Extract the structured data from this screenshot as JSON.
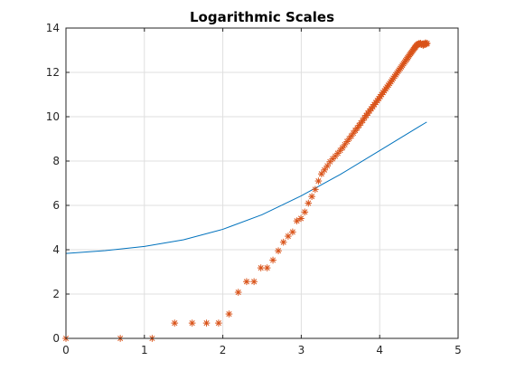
{
  "chart_data": {
    "type": "line",
    "title": "Logarithmic Scales",
    "xlabel": "",
    "ylabel": "",
    "xlim": [
      0,
      5
    ],
    "ylim": [
      0,
      14
    ],
    "x_ticks": [
      "0",
      "1",
      "2",
      "3",
      "4",
      "5"
    ],
    "y_ticks": [
      "0",
      "2",
      "4",
      "6",
      "8",
      "10",
      "12",
      "14"
    ],
    "grid": true,
    "legend": "none",
    "colors": {
      "line": "#0072BD",
      "markers": "#D95319",
      "grid": "#DFDFDF",
      "axes": "#262626"
    },
    "series": [
      {
        "style": "line",
        "curve": "y = x + ln(1 + 45·e^(-x))",
        "x": [
          0,
          0.5,
          1,
          1.5,
          2,
          2.5,
          3,
          3.5,
          4,
          4.5,
          4.6
        ],
        "y": [
          3.83,
          3.96,
          4.15,
          4.45,
          4.92,
          5.58,
          6.43,
          7.4,
          8.47,
          9.55,
          9.76
        ]
      },
      {
        "style": "markers",
        "marker": "asterisk",
        "x": [
          0,
          0.693,
          1.099,
          1.386,
          1.609,
          1.792,
          1.946,
          2.079,
          2.197,
          2.303,
          2.398,
          2.485,
          2.565,
          2.639,
          2.708,
          2.773,
          2.833,
          2.89,
          2.944,
          2.996,
          3.045,
          3.091,
          3.135,
          3.178,
          3.219,
          3.258,
          3.296,
          3.332,
          3.367,
          3.401,
          3.434,
          3.466,
          3.497,
          3.526,
          3.555,
          3.584,
          3.611,
          3.638,
          3.664,
          3.689,
          3.714,
          3.738,
          3.761,
          3.784,
          3.807,
          3.829,
          3.85,
          3.871,
          3.892,
          3.912,
          3.932,
          3.951,
          3.97,
          3.989,
          4.007,
          4.025,
          4.043,
          4.06,
          4.078,
          4.094,
          4.111,
          4.127,
          4.143,
          4.159,
          4.174,
          4.19,
          4.205,
          4.22,
          4.234,
          4.248,
          4.263,
          4.277,
          4.29,
          4.304,
          4.317,
          4.331,
          4.344,
          4.357,
          4.369,
          4.382,
          4.394,
          4.407,
          4.419,
          4.431,
          4.443,
          4.454,
          4.466,
          4.477,
          4.489,
          4.5,
          4.511,
          4.522,
          4.533,
          4.543,
          4.554,
          4.564,
          4.575,
          4.585,
          4.595,
          4.605
        ],
        "y": [
          0,
          0,
          0,
          0.69,
          0.69,
          0.69,
          0.69,
          1.1,
          2.08,
          2.56,
          2.56,
          3.18,
          3.18,
          3.53,
          3.95,
          4.34,
          4.61,
          4.8,
          5.3,
          5.41,
          5.7,
          6.1,
          6.4,
          6.72,
          7.1,
          7.42,
          7.6,
          7.78,
          7.97,
          8.1,
          8.22,
          8.35,
          8.48,
          8.6,
          8.74,
          8.88,
          9.01,
          9.13,
          9.26,
          9.38,
          9.49,
          9.61,
          9.72,
          9.83,
          9.95,
          10.06,
          10.16,
          10.26,
          10.36,
          10.45,
          10.55,
          10.64,
          10.73,
          10.82,
          10.91,
          11.0,
          11.09,
          11.17,
          11.26,
          11.34,
          11.42,
          11.5,
          11.58,
          11.66,
          11.74,
          11.82,
          11.89,
          11.97,
          12.04,
          12.11,
          12.18,
          12.25,
          12.32,
          12.39,
          12.46,
          12.53,
          12.59,
          12.66,
          12.72,
          12.79,
          12.85,
          12.91,
          12.97,
          13.03,
          13.09,
          13.14,
          13.2,
          13.24,
          13.27,
          13.3,
          13.29,
          13.31,
          13.26,
          13.28,
          13.22,
          13.25,
          13.3,
          13.33,
          13.28,
          13.31
        ]
      }
    ]
  }
}
